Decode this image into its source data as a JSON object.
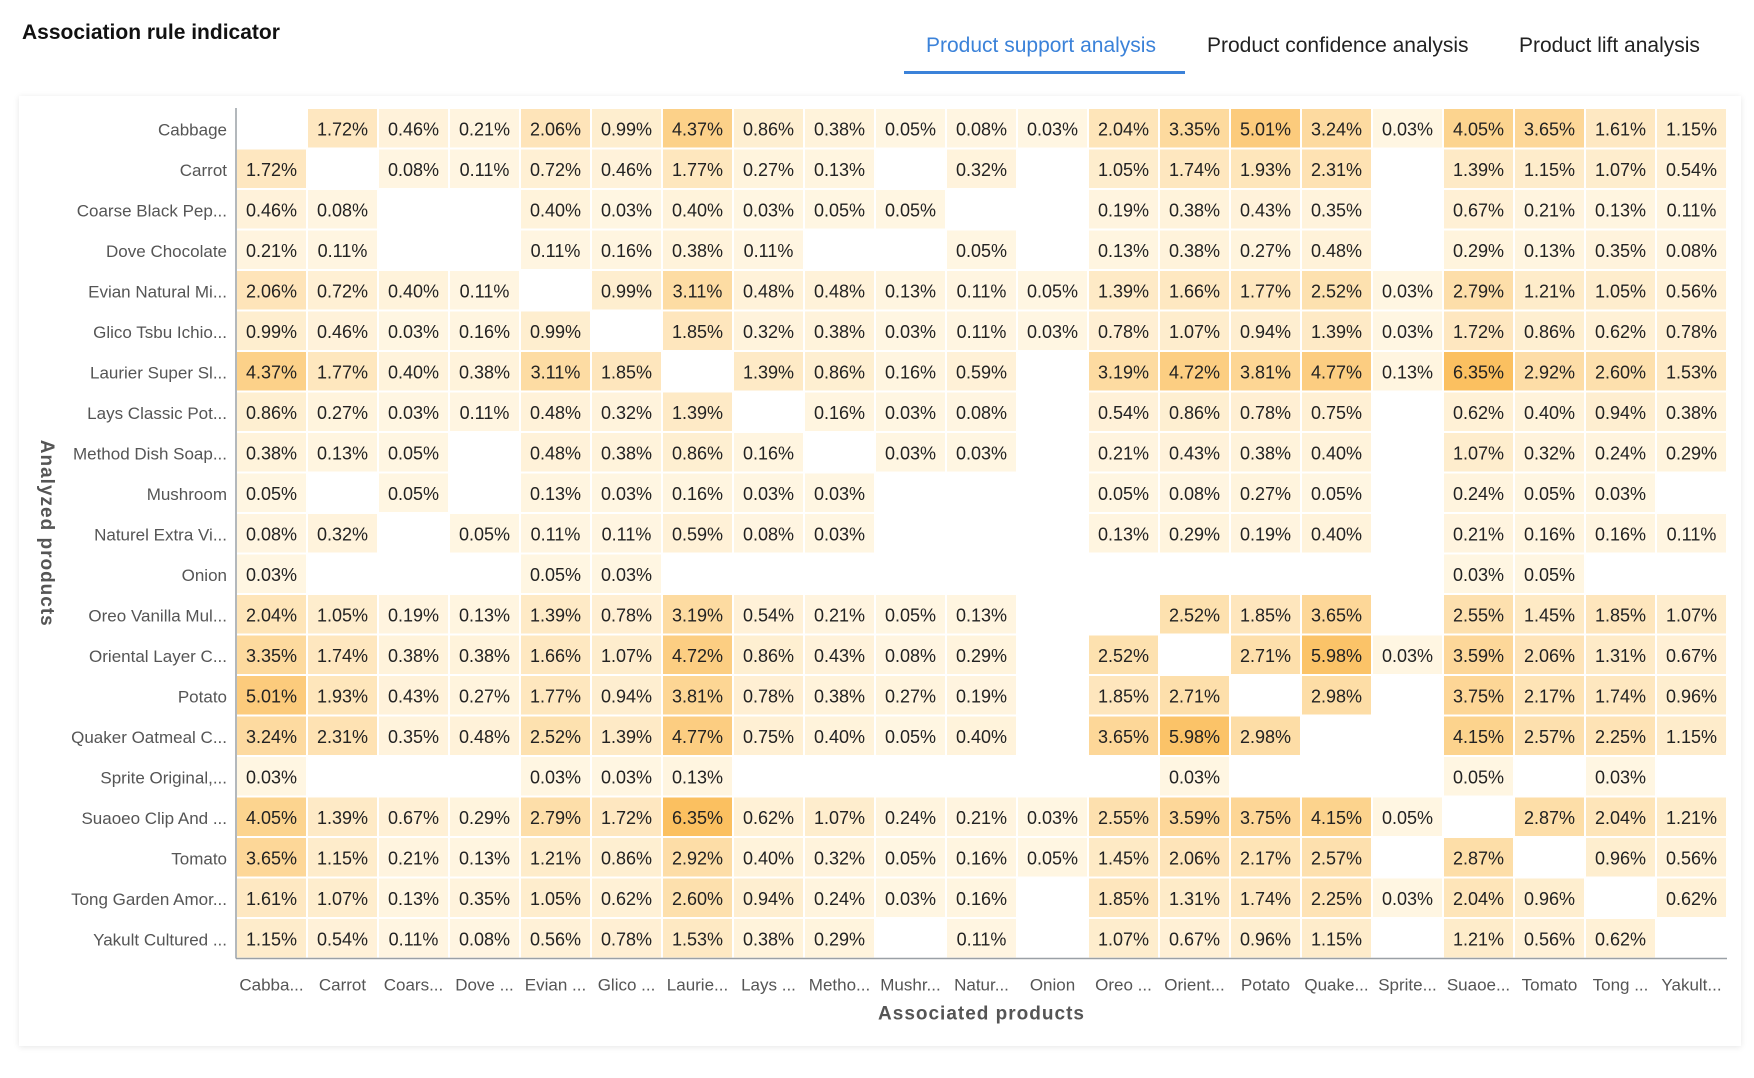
{
  "page": {
    "title": "Association rule indicator"
  },
  "tabs": [
    {
      "label": "Product support analysis",
      "active": true
    },
    {
      "label": "Product confidence analysis",
      "active": false
    },
    {
      "label": "Product lift analysis",
      "active": false
    }
  ],
  "colors": {
    "accent": "#3b82d9",
    "heat_low": "#fff6e3",
    "heat_high": "#fbc060"
  },
  "chart_data": {
    "type": "heatmap",
    "xlabel": "Associated products",
    "ylabel": "Analyzed products",
    "unit": "%",
    "rows": [
      "Cabbage",
      "Carrot",
      "Coarse Black Pep...",
      "Dove Chocolate",
      "Evian Natural Mi...",
      "Glico Tsbu Ichio...",
      "Laurier Super Sl...",
      "Lays Classic Pot...",
      "Method Dish Soap...",
      "Mushroom",
      "Naturel Extra Vi...",
      "Onion",
      "Oreo Vanilla Mul...",
      "Oriental Layer C...",
      "Potato",
      "Quaker Oatmeal C...",
      "Sprite Original,...",
      "Suaoeo Clip And ...",
      "Tomato",
      "Tong Garden Amor...",
      "Yakult Cultured ..."
    ],
    "columns": [
      "Cabba...",
      "Carrot",
      "Coars...",
      "Dove ...",
      "Evian ...",
      "Glico ...",
      "Laurie...",
      "Lays ...",
      "Metho...",
      "Mushr...",
      "Natur...",
      "Onion",
      "Oreo ...",
      "Orient...",
      "Potato",
      "Quake...",
      "Sprite...",
      "Suaoe...",
      "Tomato",
      "Tong ...",
      "Yakult..."
    ],
    "values": [
      [
        null,
        1.72,
        0.46,
        0.21,
        2.06,
        0.99,
        4.37,
        0.86,
        0.38,
        0.05,
        0.08,
        0.03,
        2.04,
        3.35,
        5.01,
        3.24,
        0.03,
        4.05,
        3.65,
        1.61,
        1.15
      ],
      [
        1.72,
        null,
        0.08,
        0.11,
        0.72,
        0.46,
        1.77,
        0.27,
        0.13,
        null,
        0.32,
        null,
        1.05,
        1.74,
        1.93,
        2.31,
        null,
        1.39,
        1.15,
        1.07,
        0.54
      ],
      [
        0.46,
        0.08,
        null,
        null,
        0.4,
        0.03,
        0.4,
        0.03,
        0.05,
        0.05,
        null,
        null,
        0.19,
        0.38,
        0.43,
        0.35,
        null,
        0.67,
        0.21,
        0.13,
        0.11
      ],
      [
        0.21,
        0.11,
        null,
        null,
        0.11,
        0.16,
        0.38,
        0.11,
        null,
        null,
        0.05,
        null,
        0.13,
        0.38,
        0.27,
        0.48,
        null,
        0.29,
        0.13,
        0.35,
        0.08
      ],
      [
        2.06,
        0.72,
        0.4,
        0.11,
        null,
        0.99,
        3.11,
        0.48,
        0.48,
        0.13,
        0.11,
        0.05,
        1.39,
        1.66,
        1.77,
        2.52,
        0.03,
        2.79,
        1.21,
        1.05,
        0.56
      ],
      [
        0.99,
        0.46,
        0.03,
        0.16,
        0.99,
        null,
        1.85,
        0.32,
        0.38,
        0.03,
        0.11,
        0.03,
        0.78,
        1.07,
        0.94,
        1.39,
        0.03,
        1.72,
        0.86,
        0.62,
        0.78
      ],
      [
        4.37,
        1.77,
        0.4,
        0.38,
        3.11,
        1.85,
        null,
        1.39,
        0.86,
        0.16,
        0.59,
        null,
        3.19,
        4.72,
        3.81,
        4.77,
        0.13,
        6.35,
        2.92,
        2.6,
        1.53
      ],
      [
        0.86,
        0.27,
        0.03,
        0.11,
        0.48,
        0.32,
        1.39,
        null,
        0.16,
        0.03,
        0.08,
        null,
        0.54,
        0.86,
        0.78,
        0.75,
        null,
        0.62,
        0.4,
        0.94,
        0.38
      ],
      [
        0.38,
        0.13,
        0.05,
        null,
        0.48,
        0.38,
        0.86,
        0.16,
        null,
        0.03,
        0.03,
        null,
        0.21,
        0.43,
        0.38,
        0.4,
        null,
        1.07,
        0.32,
        0.24,
        0.29
      ],
      [
        0.05,
        null,
        0.05,
        null,
        0.13,
        0.03,
        0.16,
        0.03,
        0.03,
        null,
        null,
        null,
        0.05,
        0.08,
        0.27,
        0.05,
        null,
        0.24,
        0.05,
        0.03,
        null
      ],
      [
        0.08,
        0.32,
        null,
        0.05,
        0.11,
        0.11,
        0.59,
        0.08,
        0.03,
        null,
        null,
        null,
        0.13,
        0.29,
        0.19,
        0.4,
        null,
        0.21,
        0.16,
        0.16,
        0.11
      ],
      [
        0.03,
        null,
        null,
        null,
        0.05,
        0.03,
        null,
        null,
        null,
        null,
        null,
        null,
        null,
        null,
        null,
        null,
        null,
        0.03,
        0.05,
        null,
        null
      ],
      [
        2.04,
        1.05,
        0.19,
        0.13,
        1.39,
        0.78,
        3.19,
        0.54,
        0.21,
        0.05,
        0.13,
        null,
        null,
        2.52,
        1.85,
        3.65,
        null,
        2.55,
        1.45,
        1.85,
        1.07
      ],
      [
        3.35,
        1.74,
        0.38,
        0.38,
        1.66,
        1.07,
        4.72,
        0.86,
        0.43,
        0.08,
        0.29,
        null,
        2.52,
        null,
        2.71,
        5.98,
        0.03,
        3.59,
        2.06,
        1.31,
        0.67
      ],
      [
        5.01,
        1.93,
        0.43,
        0.27,
        1.77,
        0.94,
        3.81,
        0.78,
        0.38,
        0.27,
        0.19,
        null,
        1.85,
        2.71,
        null,
        2.98,
        null,
        3.75,
        2.17,
        1.74,
        0.96
      ],
      [
        3.24,
        2.31,
        0.35,
        0.48,
        2.52,
        1.39,
        4.77,
        0.75,
        0.4,
        0.05,
        0.4,
        null,
        3.65,
        5.98,
        2.98,
        null,
        null,
        4.15,
        2.57,
        2.25,
        1.15
      ],
      [
        0.03,
        null,
        null,
        null,
        0.03,
        0.03,
        0.13,
        null,
        null,
        null,
        null,
        null,
        null,
        0.03,
        null,
        null,
        null,
        0.05,
        null,
        0.03,
        null
      ],
      [
        4.05,
        1.39,
        0.67,
        0.29,
        2.79,
        1.72,
        6.35,
        0.62,
        1.07,
        0.24,
        0.21,
        0.03,
        2.55,
        3.59,
        3.75,
        4.15,
        0.05,
        null,
        2.87,
        2.04,
        1.21
      ],
      [
        3.65,
        1.15,
        0.21,
        0.13,
        1.21,
        0.86,
        2.92,
        0.4,
        0.32,
        0.05,
        0.16,
        0.05,
        1.45,
        2.06,
        2.17,
        2.57,
        null,
        2.87,
        null,
        0.96,
        0.56
      ],
      [
        1.61,
        1.07,
        0.13,
        0.35,
        1.05,
        0.62,
        2.6,
        0.94,
        0.24,
        0.03,
        0.16,
        null,
        1.85,
        1.31,
        1.74,
        2.25,
        0.03,
        2.04,
        0.96,
        null,
        0.62
      ],
      [
        1.15,
        0.54,
        0.11,
        0.08,
        0.56,
        0.78,
        1.53,
        0.38,
        0.29,
        null,
        0.11,
        null,
        1.07,
        0.67,
        0.96,
        1.15,
        null,
        1.21,
        0.56,
        0.62,
        null
      ]
    ]
  }
}
